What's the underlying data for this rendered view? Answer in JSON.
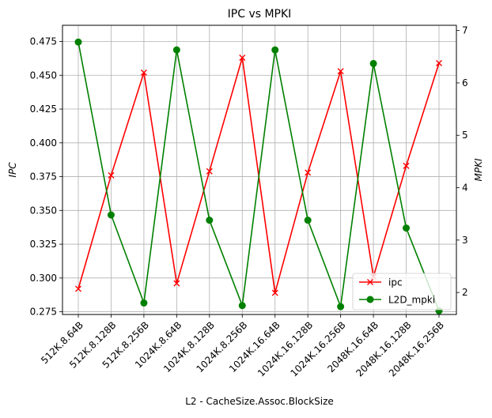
{
  "chart_data": {
    "type": "line",
    "title": "IPC vs MPKI",
    "xlabel": "L2 - CacheSize.Assoc.BlockSize",
    "ylabel": "IPC",
    "y2label": "MPKI",
    "categories": [
      "512K.8.64B",
      "512K.8.128B",
      "512K.8.256B",
      "1024K.8.64B",
      "1024K.8.128B",
      "1024K.8.256B",
      "1024K.16.64B",
      "1024K.16.128B",
      "1024K.16.256B",
      "2048K.16.64B",
      "2048K.16.128B",
      "2048K.16.256B"
    ],
    "ylim": [
      0.273,
      0.487
    ],
    "y2lim": [
      1.58,
      7.1
    ],
    "yticks": [
      "0.275",
      "0.300",
      "0.325",
      "0.350",
      "0.375",
      "0.400",
      "0.425",
      "0.450",
      "0.475"
    ],
    "y2ticks": [
      "2",
      "3",
      "4",
      "5",
      "6",
      "7"
    ],
    "grid": true,
    "legend_position": "lower-right",
    "series": [
      {
        "name": "ipc",
        "axis": "left",
        "color": "#ff0000",
        "marker": "x",
        "values": [
          0.292,
          0.376,
          0.452,
          0.296,
          0.379,
          0.463,
          0.289,
          0.378,
          0.453,
          0.301,
          0.383,
          0.459
        ]
      },
      {
        "name": "L2D_mpki",
        "axis": "right",
        "color": "#008000",
        "marker": "o",
        "values": [
          6.78,
          3.48,
          1.8,
          6.63,
          3.38,
          1.75,
          6.63,
          3.38,
          1.73,
          6.37,
          3.23,
          1.65
        ]
      }
    ]
  }
}
